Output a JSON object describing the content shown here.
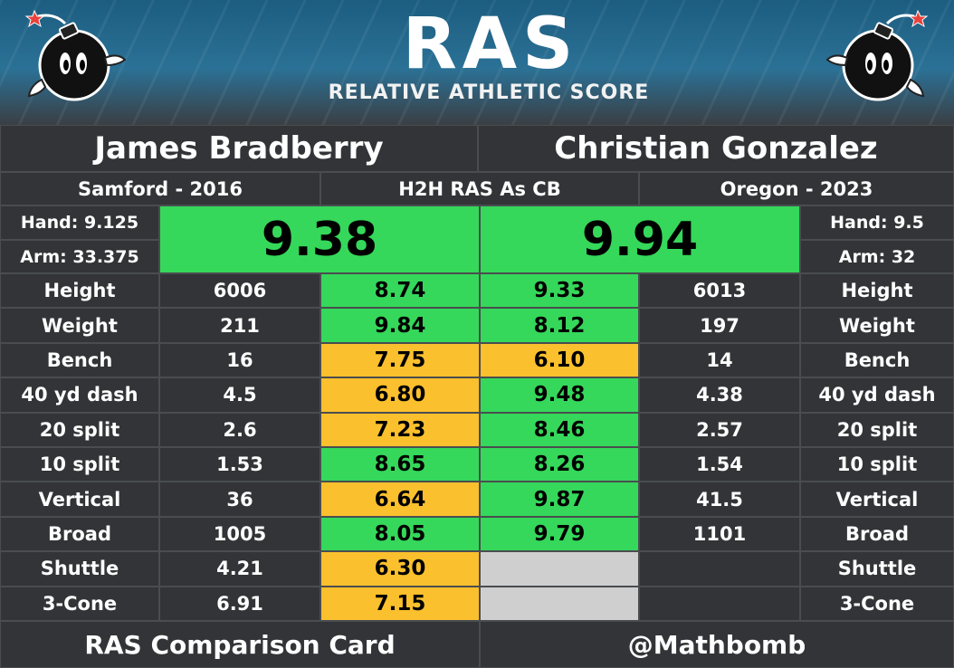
{
  "header": {
    "logo_text": "RAS",
    "subtitle": "RELATIVE ATHLETIC SCORE"
  },
  "players": {
    "left": {
      "name": "James Bradberry",
      "school": "Samford - 2016",
      "hand": "Hand: 9.125",
      "arm": "Arm: 33.375",
      "ras": "9.38"
    },
    "right": {
      "name": "Christian Gonzalez",
      "school": "Oregon - 2023",
      "hand": "Hand: 9.5",
      "arm": "Arm: 32",
      "ras": "9.94"
    }
  },
  "comparison_title": "H2H RAS As CB",
  "rows": [
    {
      "label": "Height",
      "left_value": "6006",
      "left_score": "8.74",
      "right_score": "9.33",
      "right_value": "6013",
      "left_color": "green",
      "right_color": "green"
    },
    {
      "label": "Weight",
      "left_value": "211",
      "left_score": "9.84",
      "right_score": "8.12",
      "right_value": "197",
      "left_color": "green",
      "right_color": "green"
    },
    {
      "label": "Bench",
      "left_value": "16",
      "left_score": "7.75",
      "right_score": "6.10",
      "right_value": "14",
      "left_color": "yellow",
      "right_color": "yellow"
    },
    {
      "label": "40 yd dash",
      "left_value": "4.5",
      "left_score": "6.80",
      "right_score": "9.48",
      "right_value": "4.38",
      "left_color": "yellow",
      "right_color": "green"
    },
    {
      "label": "20 split",
      "left_value": "2.6",
      "left_score": "7.23",
      "right_score": "8.46",
      "right_value": "2.57",
      "left_color": "yellow",
      "right_color": "green"
    },
    {
      "label": "10 split",
      "left_value": "1.53",
      "left_score": "8.65",
      "right_score": "8.26",
      "right_value": "1.54",
      "left_color": "green",
      "right_color": "green"
    },
    {
      "label": "Vertical",
      "left_value": "36",
      "left_score": "6.64",
      "right_score": "9.87",
      "right_value": "41.5",
      "left_color": "yellow",
      "right_color": "green"
    },
    {
      "label": "Broad",
      "left_value": "1005",
      "left_score": "8.05",
      "right_score": "9.79",
      "right_value": "1101",
      "left_color": "green",
      "right_color": "green"
    },
    {
      "label": "Shuttle",
      "left_value": "4.21",
      "left_score": "6.30",
      "right_score": "",
      "right_value": "",
      "left_color": "yellow",
      "right_color": "gray"
    },
    {
      "label": "3-Cone",
      "left_value": "6.91",
      "left_score": "7.15",
      "right_score": "",
      "right_value": "",
      "left_color": "yellow",
      "right_color": "gray"
    }
  ],
  "footer": {
    "left": "RAS Comparison Card",
    "right": "@Mathbomb"
  },
  "colors": {
    "green": "#35d85a",
    "yellow": "#fbc02d",
    "gray": "#cfcfcf",
    "dark": "#323437"
  },
  "icons": {
    "mascot": "bomb-mascot-icon"
  }
}
